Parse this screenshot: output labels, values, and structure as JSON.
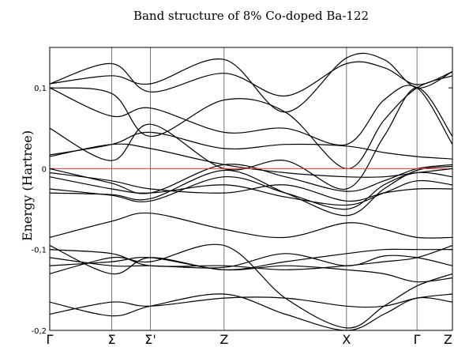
{
  "chart_data": {
    "type": "line",
    "title": "Band structure of 8% Co-doped Ba-122",
    "xlabel": "",
    "ylabel": "Energy (Hartree)",
    "ylim": [
      -0.2,
      0.15
    ],
    "yticks": [
      0.1,
      0,
      -0.1,
      -0.2
    ],
    "ytick_labels": [
      "0,1",
      "0",
      "-0,1",
      "-0,2"
    ],
    "kpath": [
      "Γ",
      "Σ",
      "Σ'",
      "Z",
      "X",
      "Γ",
      "Z"
    ],
    "kpath_x": [
      0,
      0.154,
      0.25,
      0.433,
      0.737,
      0.912,
      1.0
    ],
    "fermi_level": 0,
    "fermi_color": "#e33333",
    "band_color": "#000000",
    "x": [
      0,
      0.154,
      0.25,
      0.433,
      0.585,
      0.737,
      0.83,
      0.912,
      1.0
    ],
    "series": [
      {
        "values": [
          -0.18,
          -0.165,
          -0.17,
          -0.16,
          -0.16,
          -0.17,
          -0.17,
          -0.16,
          -0.155
        ]
      },
      {
        "values": [
          -0.165,
          -0.182,
          -0.17,
          -0.155,
          -0.18,
          -0.2,
          -0.18,
          -0.16,
          -0.165
        ]
      },
      {
        "values": [
          -0.13,
          -0.11,
          -0.115,
          -0.095,
          -0.16,
          -0.197,
          -0.17,
          -0.145,
          -0.13
        ]
      },
      {
        "values": [
          -0.12,
          -0.115,
          -0.11,
          -0.125,
          -0.12,
          -0.125,
          -0.13,
          -0.14,
          -0.135
        ]
      },
      {
        "values": [
          -0.11,
          -0.12,
          -0.12,
          -0.122,
          -0.105,
          -0.12,
          -0.108,
          -0.11,
          -0.12
        ]
      },
      {
        "values": [
          -0.1,
          -0.105,
          -0.12,
          -0.12,
          -0.125,
          -0.12,
          -0.115,
          -0.11,
          -0.095
        ]
      },
      {
        "values": [
          -0.095,
          -0.13,
          -0.11,
          -0.125,
          -0.115,
          -0.105,
          -0.1,
          -0.1,
          -0.1
        ]
      },
      {
        "values": [
          -0.085,
          -0.065,
          -0.055,
          -0.075,
          -0.085,
          -0.067,
          -0.075,
          -0.085,
          -0.085
        ]
      },
      {
        "values": [
          -0.03,
          -0.032,
          -0.037,
          -0.002,
          -0.03,
          -0.058,
          -0.025,
          -0.002,
          0.003
        ]
      },
      {
        "values": [
          -0.025,
          -0.033,
          -0.04,
          -0.01,
          -0.03,
          -0.05,
          -0.02,
          -0.005,
          -0.01
        ]
      },
      {
        "values": [
          -0.01,
          -0.025,
          -0.03,
          -0.02,
          -0.035,
          -0.045,
          -0.03,
          -0.015,
          -0.02
        ]
      },
      {
        "values": [
          -0.005,
          -0.015,
          -0.025,
          -0.03,
          -0.02,
          -0.04,
          -0.03,
          -0.025,
          -0.025
        ]
      },
      {
        "values": [
          0,
          -0.018,
          -0.03,
          0.005,
          -0.01,
          -0.028,
          -0.015,
          0,
          0.005
        ]
      },
      {
        "values": [
          0.015,
          0.03,
          0.025,
          0.005,
          -0.005,
          -0.01,
          -0.01,
          -0.005,
          0.0
        ]
      },
      {
        "values": [
          0.017,
          0.03,
          0.045,
          0.025,
          0.03,
          0.028,
          0.02,
          0.015,
          0.012
        ]
      },
      {
        "values": [
          0.05,
          0.01,
          0.055,
          0.0,
          0.01,
          -0.025,
          0.04,
          0.1,
          0.04
        ]
      },
      {
        "values": [
          0.1,
          0.065,
          0.075,
          0.045,
          0.05,
          0.03,
          0.085,
          0.1,
          0.03
        ]
      },
      {
        "values": [
          0.1,
          0.093,
          0.04,
          0.085,
          0.07,
          0.0,
          0.06,
          0.1,
          0.115
        ]
      },
      {
        "values": [
          0.105,
          0.13,
          0.095,
          0.118,
          0.09,
          0.13,
          0.125,
          0.104,
          0.12
        ]
      },
      {
        "values": [
          0.105,
          0.115,
          0.105,
          0.135,
          0.07,
          0.137,
          0.135,
          0.1,
          0.12
        ]
      }
    ]
  }
}
